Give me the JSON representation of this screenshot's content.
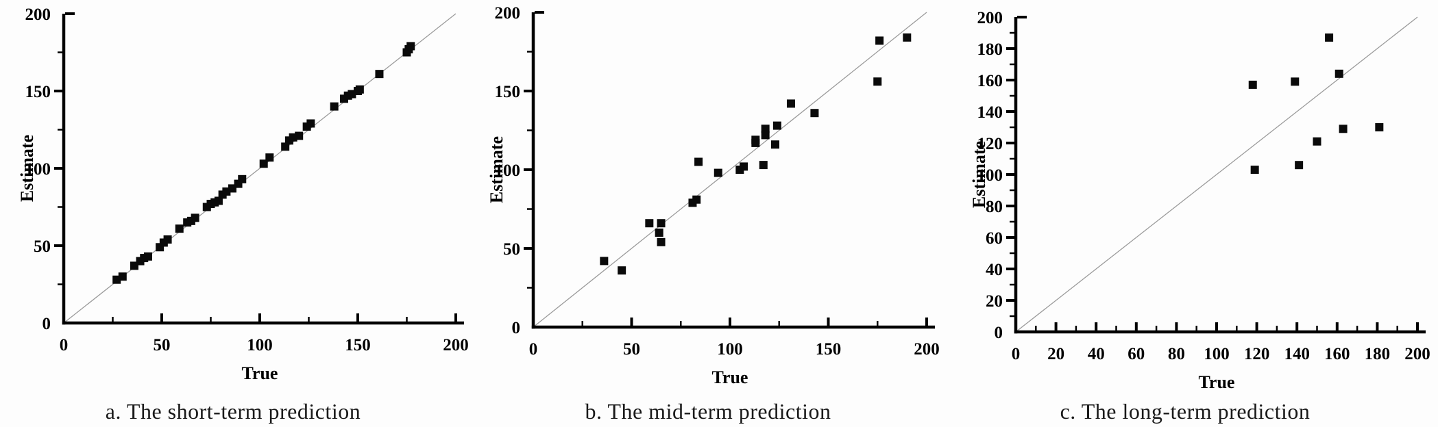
{
  "figure": {
    "captions": [
      "a. The short-term prediction",
      "b. The mid-term prediction",
      "c. The long-term prediction"
    ]
  },
  "colors": {
    "axis": "#000000",
    "tick_label": "#000000",
    "marker": "#0a0a0a",
    "diagonal_line": "#9b9b9b",
    "background": "#fdfdfd"
  },
  "chart_data": [
    {
      "type": "scatter",
      "caption": "a. The short-term prediction",
      "xlabel": "True",
      "ylabel": "Estimate",
      "xlim": [
        0,
        200
      ],
      "ylim": [
        0,
        200
      ],
      "x_ticks": [
        0,
        50,
        100,
        150,
        200
      ],
      "y_ticks": [
        0,
        50,
        100,
        150,
        200
      ],
      "x_minor_step": 25,
      "y_minor_step": 25,
      "grid": false,
      "legend": "none",
      "marker": "filled-square",
      "diagonal_reference_line": true,
      "points": [
        [
          27,
          28
        ],
        [
          30,
          30
        ],
        [
          36,
          37
        ],
        [
          39,
          40
        ],
        [
          41,
          42
        ],
        [
          43,
          43
        ],
        [
          49,
          49
        ],
        [
          51,
          52
        ],
        [
          53,
          54
        ],
        [
          59,
          61
        ],
        [
          63,
          65
        ],
        [
          65,
          66
        ],
        [
          67,
          68
        ],
        [
          73,
          75
        ],
        [
          75,
          77
        ],
        [
          77,
          78
        ],
        [
          79,
          79
        ],
        [
          81,
          83
        ],
        [
          83,
          85
        ],
        [
          86,
          87
        ],
        [
          89,
          90
        ],
        [
          91,
          93
        ],
        [
          102,
          103
        ],
        [
          105,
          107
        ],
        [
          113,
          114
        ],
        [
          115,
          118
        ],
        [
          117,
          120
        ],
        [
          120,
          121
        ],
        [
          124,
          127
        ],
        [
          126,
          129
        ],
        [
          138,
          140
        ],
        [
          143,
          145
        ],
        [
          145,
          147
        ],
        [
          147,
          148
        ],
        [
          150,
          150
        ],
        [
          151,
          151
        ],
        [
          161,
          161
        ],
        [
          175,
          175
        ],
        [
          176,
          177
        ],
        [
          177,
          179
        ]
      ]
    },
    {
      "type": "scatter",
      "caption": "b. The mid-term prediction",
      "xlabel": "True",
      "ylabel": "Estimate",
      "xlim": [
        0,
        200
      ],
      "ylim": [
        0,
        200
      ],
      "x_ticks": [
        0,
        50,
        100,
        150,
        200
      ],
      "y_ticks": [
        0,
        50,
        100,
        150,
        200
      ],
      "x_minor_step": 25,
      "y_minor_step": 25,
      "grid": false,
      "legend": "none",
      "marker": "filled-square",
      "diagonal_reference_line": true,
      "points": [
        [
          36,
          42
        ],
        [
          45,
          36
        ],
        [
          59,
          66
        ],
        [
          64,
          60
        ],
        [
          65,
          66
        ],
        [
          65,
          54
        ],
        [
          81,
          79
        ],
        [
          83,
          81
        ],
        [
          84,
          105
        ],
        [
          94,
          98
        ],
        [
          105,
          100
        ],
        [
          107,
          102
        ],
        [
          113,
          117
        ],
        [
          113,
          119
        ],
        [
          117,
          103
        ],
        [
          118,
          122
        ],
        [
          118,
          126
        ],
        [
          123,
          116
        ],
        [
          124,
          128
        ],
        [
          131,
          142
        ],
        [
          143,
          136
        ],
        [
          175,
          156
        ],
        [
          176,
          182
        ],
        [
          190,
          184
        ]
      ]
    },
    {
      "type": "scatter",
      "caption": "c. The long-term prediction",
      "xlabel": "True",
      "ylabel": "Estimate",
      "xlim": [
        0,
        200
      ],
      "ylim": [
        0,
        200
      ],
      "x_ticks": [
        0,
        20,
        40,
        60,
        80,
        100,
        120,
        140,
        160,
        180,
        200
      ],
      "y_ticks": [
        0,
        20,
        40,
        60,
        80,
        100,
        120,
        140,
        160,
        180,
        200
      ],
      "x_minor_step": 10,
      "y_minor_step": 10,
      "grid": false,
      "legend": "none",
      "marker": "filled-square",
      "diagonal_reference_line": true,
      "points": [
        [
          118,
          157
        ],
        [
          119,
          103
        ],
        [
          139,
          159
        ],
        [
          141,
          106
        ],
        [
          150,
          121
        ],
        [
          156,
          187
        ],
        [
          161,
          164
        ],
        [
          163,
          129
        ],
        [
          181,
          130
        ]
      ]
    }
  ]
}
